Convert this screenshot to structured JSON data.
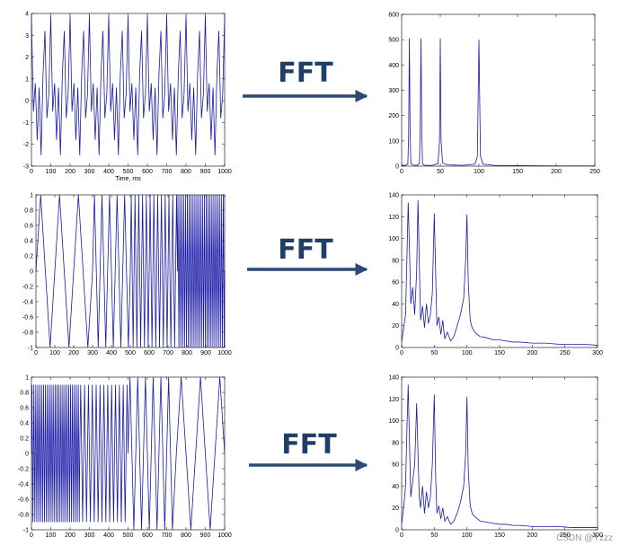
{
  "chart_data": [
    {
      "type": "line",
      "xlabel": "Time, ms",
      "color": "#1a1aa6",
      "xlim": [
        0,
        1000
      ],
      "ylim": [
        -3,
        4
      ],
      "xticks": [
        0,
        100,
        200,
        300,
        400,
        500,
        600,
        700,
        800,
        900,
        1000
      ],
      "yticks": [
        -3,
        -2,
        -1,
        0,
        1,
        2,
        3,
        4
      ],
      "x": [
        0,
        10,
        20,
        30,
        40,
        50,
        60,
        70,
        80,
        90,
        100,
        110,
        120,
        130,
        140,
        150,
        160,
        170,
        180,
        190,
        200,
        210,
        220,
        230,
        240,
        250,
        260,
        270,
        280,
        290,
        300,
        310,
        320,
        330,
        340,
        350,
        360,
        370,
        380,
        390,
        400,
        410,
        420,
        430,
        440,
        450,
        460,
        470,
        480,
        490,
        500,
        510,
        520,
        530,
        540,
        550,
        560,
        570,
        580,
        590,
        600,
        610,
        620,
        630,
        640,
        650,
        660,
        670,
        680,
        690,
        700,
        710,
        720,
        730,
        740,
        750,
        760,
        770,
        780,
        790,
        800,
        810,
        820,
        830,
        840,
        850,
        860,
        870,
        880,
        890,
        900,
        910,
        920,
        930,
        940,
        950,
        960,
        970,
        980,
        990,
        1000
      ],
      "values": [
        3.9,
        -0.5,
        0.8,
        -1.8,
        0.6,
        -2.5,
        1.2,
        3.2,
        -0.8,
        0.3,
        3.9,
        -0.5,
        0.8,
        -1.8,
        0.6,
        -2.5,
        1.2,
        3.2,
        -0.8,
        0.3,
        3.9,
        -0.5,
        0.8,
        -1.8,
        0.6,
        -2.5,
        1.2,
        3.2,
        -0.8,
        0.3,
        3.9,
        -0.5,
        0.8,
        -1.8,
        0.6,
        -2.5,
        1.2,
        3.2,
        -0.8,
        0.3,
        3.9,
        -0.5,
        0.8,
        -1.8,
        0.6,
        -2.5,
        1.2,
        3.2,
        -0.8,
        0.3,
        3.9,
        -0.5,
        0.8,
        -1.8,
        0.6,
        -2.5,
        1.2,
        3.2,
        -0.8,
        0.3,
        3.9,
        -0.5,
        0.8,
        -1.8,
        0.6,
        -2.5,
        1.2,
        3.2,
        -0.8,
        0.3,
        3.9,
        -0.5,
        0.8,
        -1.8,
        0.6,
        -2.5,
        1.2,
        3.2,
        -0.8,
        0.3,
        3.9,
        -0.5,
        0.8,
        -1.8,
        0.6,
        -2.5,
        1.2,
        3.2,
        -0.8,
        0.3,
        3.9,
        -0.5,
        0.8,
        -1.8,
        0.6,
        -2.5,
        1.2,
        3.2,
        -0.8,
        0.3,
        3.9
      ]
    },
    {
      "type": "line",
      "color": "#1a1aa6",
      "xlim": [
        0,
        250
      ],
      "ylim": [
        0,
        600
      ],
      "xticks": [
        0,
        50,
        100,
        150,
        200,
        250
      ],
      "yticks": [
        0,
        100,
        200,
        300,
        400,
        500,
        600
      ],
      "x": [
        0,
        2,
        5,
        8,
        9,
        10,
        11,
        12,
        15,
        20,
        23,
        24,
        25,
        26,
        27,
        30,
        40,
        47,
        49,
        50,
        51,
        53,
        60,
        80,
        95,
        98,
        100,
        102,
        105,
        120,
        150,
        200,
        250
      ],
      "values": [
        2,
        3,
        3,
        8,
        120,
        505,
        120,
        10,
        4,
        3,
        10,
        150,
        505,
        150,
        8,
        3,
        3,
        10,
        100,
        505,
        100,
        12,
        5,
        3,
        8,
        40,
        500,
        40,
        8,
        3,
        2,
        1,
        1
      ]
    },
    {
      "type": "line",
      "color": "#1a1aa6",
      "xlim": [
        0,
        1000
      ],
      "ylim": [
        -1,
        1
      ],
      "xticks": [
        0,
        100,
        200,
        300,
        400,
        500,
        600,
        700,
        800,
        900,
        1000
      ],
      "yticks": [
        -1,
        -0.8,
        -0.6,
        -0.4,
        -0.2,
        0,
        0.2,
        0.4,
        0.6,
        0.8,
        1
      ],
      "x": [
        0,
        25,
        75,
        125,
        175,
        225,
        275,
        300,
        310,
        330,
        350,
        370,
        390,
        410,
        430,
        450,
        470,
        490,
        500,
        505,
        515,
        525,
        535,
        545,
        555,
        565,
        575,
        585,
        595,
        605,
        615,
        625,
        635,
        645,
        655,
        665,
        675,
        685,
        695,
        705,
        715,
        725,
        735,
        745,
        750,
        752.5,
        757.5,
        762.5,
        767.5,
        772.5,
        777.5,
        782.5,
        787.5,
        792.5,
        797.5,
        802.5,
        807.5,
        812.5,
        817.5,
        822.5,
        827.5,
        832.5,
        837.5,
        842.5,
        847.5,
        852.5,
        857.5,
        862.5,
        867.5,
        872.5,
        877.5,
        882.5,
        887.5,
        892.5,
        897.5,
        902.5,
        907.5,
        912.5,
        917.5,
        922.5,
        927.5,
        932.5,
        937.5,
        942.5,
        947.5,
        952.5,
        957.5,
        962.5,
        967.5,
        972.5,
        977.5,
        982.5,
        987.5,
        992.5,
        997.5,
        1000
      ],
      "values": [
        0,
        1,
        -1,
        1,
        -1,
        1,
        -1,
        0,
        1,
        -1,
        1,
        -1,
        1,
        -1,
        1,
        -1,
        1,
        -1,
        0,
        1,
        -1,
        1,
        -1,
        1,
        -1,
        1,
        -1,
        1,
        -1,
        1,
        -1,
        1,
        -1,
        1,
        -1,
        1,
        -1,
        1,
        -1,
        1,
        -1,
        1,
        -1,
        1,
        0,
        1,
        -1,
        1,
        -1,
        1,
        -1,
        1,
        -1,
        1,
        -1,
        1,
        -1,
        1,
        -1,
        1,
        -1,
        1,
        -1,
        1,
        -1,
        1,
        -1,
        1,
        -1,
        1,
        -1,
        1,
        -1,
        1,
        -1,
        1,
        -1,
        1,
        -1,
        1,
        -1,
        1,
        -1,
        1,
        -1,
        1,
        -1,
        1,
        -1,
        1,
        -1,
        1,
        -1,
        1,
        -1,
        0
      ]
    },
    {
      "type": "line",
      "color": "#1a1aa6",
      "xlim": [
        0,
        300
      ],
      "ylim": [
        0,
        140
      ],
      "xticks": [
        0,
        50,
        100,
        150,
        200,
        250,
        300
      ],
      "yticks": [
        0,
        20,
        40,
        60,
        80,
        100,
        120,
        140
      ],
      "x": [
        0,
        3,
        6,
        8,
        10,
        12,
        14,
        17,
        20,
        23,
        25,
        27,
        29,
        32,
        35,
        38,
        41,
        44,
        47,
        50,
        52,
        54,
        57,
        60,
        63,
        66,
        70,
        75,
        80,
        85,
        90,
        95,
        98,
        100,
        102,
        105,
        108,
        112,
        116,
        120,
        130,
        140,
        150,
        160,
        170,
        180,
        200,
        220,
        240,
        260,
        280,
        300
      ],
      "values": [
        5,
        18,
        30,
        80,
        133,
        90,
        40,
        55,
        30,
        70,
        135,
        80,
        25,
        38,
        18,
        40,
        22,
        30,
        50,
        123,
        70,
        20,
        28,
        12,
        25,
        8,
        14,
        6,
        10,
        20,
        30,
        45,
        80,
        122,
        60,
        25,
        18,
        14,
        12,
        10,
        9,
        7,
        7,
        6,
        5,
        5,
        4,
        4,
        3,
        3,
        3,
        2
      ]
    },
    {
      "type": "line",
      "color": "#1a1aa6",
      "xlim": [
        0,
        1000
      ],
      "ylim": [
        -1,
        1
      ],
      "xticks": [
        0,
        100,
        200,
        300,
        400,
        500,
        600,
        700,
        800,
        900,
        1000
      ],
      "yticks": [
        -1,
        -0.8,
        -0.6,
        -0.4,
        -0.2,
        0,
        0.2,
        0.4,
        0.6,
        0.8,
        1
      ],
      "x": [
        0,
        2.5,
        7.5,
        12.5,
        17.5,
        22.5,
        27.5,
        32.5,
        37.5,
        42.5,
        47.5,
        52.5,
        57.5,
        62.5,
        67.5,
        72.5,
        77.5,
        82.5,
        87.5,
        92.5,
        97.5,
        102.5,
        107.5,
        112.5,
        117.5,
        122.5,
        127.5,
        132.5,
        137.5,
        142.5,
        147.5,
        152.5,
        157.5,
        162.5,
        167.5,
        172.5,
        177.5,
        182.5,
        187.5,
        192.5,
        197.5,
        202.5,
        207.5,
        212.5,
        217.5,
        222.5,
        227.5,
        232.5,
        237.5,
        242.5,
        247.5,
        250,
        255,
        265,
        275,
        285,
        295,
        305,
        315,
        325,
        335,
        345,
        355,
        365,
        375,
        385,
        395,
        405,
        415,
        425,
        435,
        445,
        455,
        465,
        475,
        485,
        495,
        500,
        510,
        530,
        550,
        570,
        590,
        610,
        630,
        650,
        670,
        690,
        710,
        730,
        750,
        775,
        825,
        875,
        925,
        975,
        1000
      ],
      "values": [
        0,
        0.9,
        -0.9,
        0.9,
        -0.9,
        0.9,
        -0.9,
        0.9,
        -0.9,
        0.9,
        -0.9,
        0.9,
        -0.9,
        0.9,
        -0.9,
        0.9,
        -0.9,
        0.9,
        -0.9,
        0.9,
        -0.9,
        0.9,
        -0.9,
        0.9,
        -0.9,
        0.9,
        -0.9,
        0.9,
        -0.9,
        0.9,
        -0.9,
        0.9,
        -0.9,
        0.9,
        -0.9,
        0.9,
        -0.9,
        0.9,
        -0.9,
        0.9,
        -0.9,
        0.9,
        -0.9,
        0.9,
        -0.9,
        0.9,
        -0.9,
        0.9,
        -0.9,
        0.9,
        -0.9,
        0,
        0.9,
        -0.9,
        0.9,
        -0.9,
        0.9,
        -0.9,
        0.9,
        -0.9,
        0.9,
        -0.9,
        0.9,
        -0.9,
        0.9,
        -0.9,
        0.9,
        -0.9,
        0.9,
        -0.9,
        0.9,
        -0.9,
        0.9,
        -0.9,
        0.9,
        -0.9,
        0.9,
        0,
        1,
        -1,
        1,
        -1,
        1,
        -1,
        1,
        -1,
        1,
        -1,
        1,
        -1,
        0,
        1,
        -1,
        1,
        -1,
        1,
        0
      ]
    },
    {
      "type": "line",
      "color": "#1a1aa6",
      "xlim": [
        0,
        300
      ],
      "ylim": [
        0,
        140
      ],
      "xticks": [
        0,
        50,
        100,
        150,
        200,
        250,
        300
      ],
      "yticks": [
        0,
        20,
        40,
        60,
        80,
        100,
        120,
        140
      ],
      "x": [
        0,
        3,
        6,
        8,
        10,
        12,
        14,
        17,
        20,
        23,
        25,
        27,
        29,
        32,
        35,
        38,
        41,
        44,
        47,
        50,
        52,
        54,
        57,
        60,
        63,
        66,
        70,
        75,
        80,
        85,
        90,
        95,
        98,
        100,
        102,
        105,
        108,
        112,
        116,
        120,
        130,
        140,
        150,
        160,
        170,
        180,
        200,
        220,
        240,
        260,
        280,
        300
      ],
      "values": [
        5,
        20,
        40,
        90,
        133,
        80,
        30,
        45,
        60,
        116,
        70,
        30,
        20,
        40,
        15,
        35,
        20,
        30,
        60,
        124,
        50,
        15,
        22,
        10,
        20,
        8,
        12,
        5,
        8,
        15,
        25,
        40,
        70,
        122,
        55,
        22,
        15,
        12,
        10,
        8,
        7,
        6,
        5,
        5,
        4,
        4,
        3,
        3,
        3,
        2,
        2,
        2
      ]
    }
  ],
  "arrows": [
    {
      "label": "FFT"
    },
    {
      "label": "FFT"
    },
    {
      "label": "FFT"
    }
  ],
  "watermark": "CSDN @Yzzz"
}
